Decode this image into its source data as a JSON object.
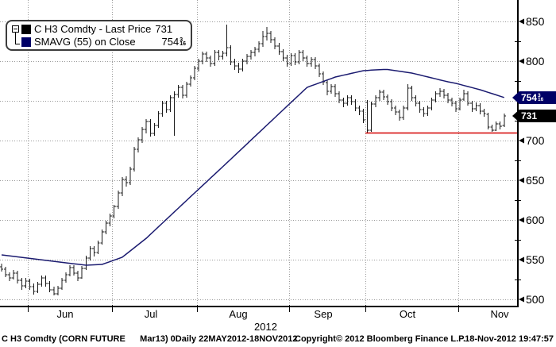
{
  "legend": {
    "series": [
      {
        "swatch_color": "#000000",
        "label": "C H3 Comdty - Last Price",
        "value": "731"
      },
      {
        "swatch_color": "#000066",
        "label": "SMAVG (55) on Close",
        "value": "754",
        "value_frac_num": "3",
        "value_frac_den": "16"
      }
    ]
  },
  "price_tags": [
    {
      "text": "754",
      "frac_num": "3",
      "frac_den": "16",
      "bg": "#000066",
      "price": 754.1875
    },
    {
      "text": "731",
      "bg": "#000000",
      "price": 731
    }
  ],
  "footer": {
    "left": "C H3 Comdty (CORN FUTURE      Mar13) 0Daily 22MAY2012-18NOV2012",
    "center": "Copyright© 2012 Bloomberg Finance L.P.",
    "right": "18-Nov-2012 19:47:57"
  },
  "colors": {
    "bar": "#1a1a1a",
    "sma_line": "#1b1b70",
    "support_line": "#d40000",
    "grid": "#999999",
    "axis": "#000000",
    "tag_sma_bg": "#000066",
    "tag_last_bg": "#000000"
  },
  "chart_data": {
    "type": "ohlc-bar+line",
    "title": "C H3 Comdty - Last Price",
    "instrument": "C H3 Comdty (CORN FUTURE Mar13)",
    "period": "0Daily 22MAY2012-18NOV2012",
    "last_price": 731,
    "sma_period": 55,
    "sma_last": 754.1875,
    "y_axis": {
      "labeled_ticks": [
        850,
        800,
        700,
        650,
        600,
        550,
        500
      ],
      "hidden_tick": 750,
      "gridline_prices": [
        850,
        800,
        750,
        700,
        650,
        600,
        550,
        500
      ],
      "minor_ticks": [
        825,
        775,
        725,
        675,
        625,
        575,
        525
      ],
      "range": [
        500,
        850
      ]
    },
    "x_axis": {
      "months": [
        "Jun",
        "Jul",
        "Aug",
        "Sep",
        "Oct",
        "Nov"
      ],
      "year": "2012",
      "month_start_indices": [
        7,
        28,
        49,
        72,
        91,
        114
      ]
    },
    "support_line": {
      "price": 709.5,
      "start_index": 91
    },
    "bars": [
      [
        541,
        545,
        535,
        538
      ],
      [
        538,
        541,
        528,
        531
      ],
      [
        531,
        534,
        523,
        527
      ],
      [
        527,
        537,
        525,
        533
      ],
      [
        533,
        536,
        520,
        524
      ],
      [
        524,
        527,
        512,
        517
      ],
      [
        517,
        527,
        514,
        523
      ],
      [
        523,
        526,
        512,
        516
      ],
      [
        516,
        520,
        506,
        510
      ],
      [
        510,
        522,
        508,
        519
      ],
      [
        519,
        530,
        516,
        527
      ],
      [
        527,
        530,
        516,
        520
      ],
      [
        520,
        523,
        509,
        512
      ],
      [
        512,
        516,
        505,
        507
      ],
      [
        507,
        517,
        505,
        514
      ],
      [
        514,
        527,
        512,
        524
      ],
      [
        524,
        534,
        521,
        531
      ],
      [
        531,
        543,
        529,
        540
      ],
      [
        540,
        543,
        530,
        533
      ],
      [
        533,
        536,
        523,
        527
      ],
      [
        527,
        542,
        526,
        539
      ],
      [
        539,
        555,
        537,
        552
      ],
      [
        552,
        567,
        549,
        564
      ],
      [
        564,
        567,
        554,
        559
      ],
      [
        559,
        574,
        557,
        571
      ],
      [
        571,
        588,
        569,
        585
      ],
      [
        585,
        599,
        582,
        596
      ],
      [
        596,
        608,
        592,
        605
      ],
      [
        605,
        619,
        602,
        617
      ],
      [
        617,
        637,
        614,
        634
      ],
      [
        634,
        654,
        630,
        651
      ],
      [
        651,
        655,
        642,
        647
      ],
      [
        647,
        667,
        644,
        664
      ],
      [
        664,
        692,
        661,
        689
      ],
      [
        689,
        704,
        685,
        701
      ],
      [
        701,
        717,
        697,
        714
      ],
      [
        714,
        727,
        709,
        724
      ],
      [
        724,
        727,
        705,
        709
      ],
      [
        709,
        722,
        706,
        719
      ],
      [
        719,
        737,
        716,
        734
      ],
      [
        734,
        750,
        730,
        747
      ],
      [
        747,
        750,
        735,
        739
      ],
      [
        739,
        757,
        736,
        754
      ],
      [
        754,
        762,
        706,
        758
      ],
      [
        758,
        770,
        754,
        767
      ],
      [
        767,
        770,
        753,
        757
      ],
      [
        757,
        774,
        754,
        771
      ],
      [
        771,
        782,
        768,
        779
      ],
      [
        779,
        794,
        776,
        791
      ],
      [
        791,
        803,
        787,
        800
      ],
      [
        800,
        812,
        796,
        809
      ],
      [
        809,
        812,
        799,
        804
      ],
      [
        804,
        807,
        793,
        797
      ],
      [
        797,
        814,
        794,
        811
      ],
      [
        811,
        814,
        801,
        806
      ],
      [
        806,
        813,
        802,
        810
      ],
      [
        810,
        846,
        806,
        817
      ],
      [
        817,
        820,
        795,
        799
      ],
      [
        799,
        803,
        789,
        794
      ],
      [
        794,
        798,
        785,
        790
      ],
      [
        790,
        803,
        787,
        800
      ],
      [
        800,
        809,
        796,
        806
      ],
      [
        806,
        814,
        802,
        811
      ],
      [
        811,
        818,
        806,
        815
      ],
      [
        815,
        825,
        811,
        822
      ],
      [
        822,
        838,
        818,
        831
      ],
      [
        831,
        843,
        826,
        835
      ],
      [
        835,
        838,
        823,
        827
      ],
      [
        827,
        830,
        815,
        819
      ],
      [
        819,
        823,
        808,
        812
      ],
      [
        812,
        815,
        800,
        804
      ],
      [
        804,
        808,
        793,
        797
      ],
      [
        797,
        810,
        794,
        807
      ],
      [
        807,
        810,
        795,
        799
      ],
      [
        799,
        814,
        796,
        811
      ],
      [
        811,
        814,
        800,
        804
      ],
      [
        804,
        807,
        793,
        797
      ],
      [
        797,
        805,
        793,
        802
      ],
      [
        802,
        805,
        790,
        794
      ],
      [
        794,
        797,
        780,
        784
      ],
      [
        784,
        787,
        770,
        774
      ],
      [
        773,
        776,
        757,
        762
      ],
      [
        762,
        771,
        759,
        768
      ],
      [
        768,
        771,
        755,
        759
      ],
      [
        759,
        762,
        747,
        751
      ],
      [
        751,
        754,
        742,
        747
      ],
      [
        747,
        757,
        744,
        754
      ],
      [
        754,
        757,
        745,
        749
      ],
      [
        749,
        752,
        737,
        741
      ],
      [
        741,
        744,
        732,
        737
      ],
      [
        737,
        740,
        722,
        726
      ],
      [
        748,
        751,
        709,
        713
      ],
      [
        713,
        749,
        711,
        746
      ],
      [
        746,
        757,
        742,
        754
      ],
      [
        754,
        764,
        750,
        761
      ],
      [
        761,
        764,
        751,
        755
      ],
      [
        755,
        758,
        745,
        749
      ],
      [
        749,
        752,
        737,
        741
      ],
      [
        741,
        744,
        732,
        736
      ],
      [
        736,
        739,
        725,
        729
      ],
      [
        729,
        744,
        726,
        741
      ],
      [
        741,
        771,
        738,
        766
      ],
      [
        766,
        769,
        750,
        754
      ],
      [
        754,
        757,
        743,
        747
      ],
      [
        747,
        750,
        735,
        739
      ],
      [
        739,
        742,
        730,
        734
      ],
      [
        734,
        744,
        731,
        741
      ],
      [
        741,
        754,
        738,
        751
      ],
      [
        751,
        762,
        748,
        759
      ],
      [
        759,
        766,
        755,
        762
      ],
      [
        762,
        765,
        753,
        757
      ],
      [
        757,
        760,
        747,
        751
      ],
      [
        751,
        754,
        743,
        747
      ],
      [
        747,
        750,
        736,
        740
      ],
      [
        740,
        754,
        738,
        751
      ],
      [
        752,
        764,
        750,
        759
      ],
      [
        759,
        762,
        744,
        747
      ],
      [
        747,
        750,
        736,
        740
      ],
      [
        740,
        748,
        737,
        744
      ],
      [
        744,
        747,
        733,
        737
      ],
      [
        737,
        740,
        730,
        734
      ],
      [
        733,
        735,
        714,
        717
      ],
      [
        717,
        720,
        711,
        713
      ],
      [
        713,
        724,
        712,
        721
      ],
      [
        721,
        724,
        714,
        718
      ],
      [
        719,
        734,
        717,
        731
      ]
    ],
    "sma": [
      556.0,
      555.4,
      554.8,
      554.1,
      553.5,
      552.9,
      552.3,
      551.6,
      551.0,
      550.4,
      549.8,
      549.1,
      548.5,
      547.9,
      547.3,
      546.6,
      546.0,
      545.4,
      544.8,
      544.2,
      543.6,
      543.0,
      543.3,
      543.5,
      543.8,
      544.0,
      545.8,
      547.6,
      549.4,
      551.2,
      553.0,
      557.0,
      561.0,
      565.0,
      569.0,
      573.0,
      577.0,
      581.8,
      586.5,
      591.3,
      596.0,
      600.8,
      605.5,
      610.3,
      615.0,
      619.8,
      624.5,
      629.3,
      634.0,
      638.7,
      643.4,
      648.1,
      652.9,
      657.6,
      662.3,
      667.0,
      671.8,
      676.5,
      681.3,
      686.1,
      690.8,
      695.6,
      700.4,
      705.2,
      709.9,
      714.7,
      719.5,
      724.2,
      729.0,
      733.8,
      738.5,
      743.3,
      748.0,
      752.8,
      757.5,
      762.3,
      767.0,
      768.9,
      770.7,
      772.6,
      774.4,
      776.3,
      778.1,
      780.0,
      781.1,
      782.3,
      783.4,
      784.6,
      785.7,
      786.9,
      788.0,
      788.3,
      788.7,
      789.0,
      789.3,
      789.5,
      789.5,
      788.8,
      788.0,
      787.3,
      786.5,
      785.8,
      785.0,
      783.8,
      782.6,
      781.3,
      780.1,
      778.9,
      777.7,
      776.4,
      775.2,
      774.0,
      773.0,
      772.0,
      770.7,
      769.3,
      768.0,
      766.7,
      765.3,
      764.0,
      762.4,
      760.7,
      759.1,
      757.5,
      755.8,
      754.2
    ]
  }
}
